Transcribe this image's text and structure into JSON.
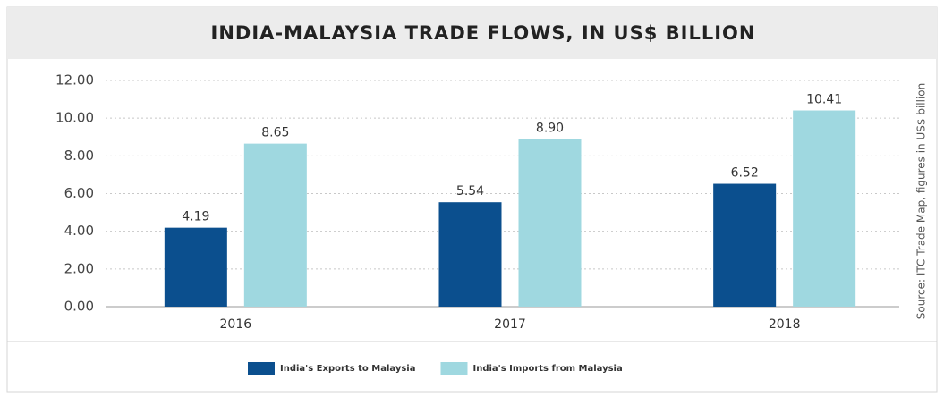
{
  "chart_data": {
    "type": "bar",
    "title": "INDIA-MALAYSIA TRADE FLOWS, IN US$ BILLION",
    "source": "Source: ITC Trade Map, figures in US$ billion",
    "categories": [
      "2016",
      "2017",
      "2018"
    ],
    "series": [
      {
        "name": "India's Exports to Malaysia",
        "color": "#0b4f8e",
        "values": [
          4.19,
          5.54,
          6.52
        ],
        "value_labels": [
          "4.19",
          "5.54",
          "6.52"
        ]
      },
      {
        "name": "India's Imports from Malaysia",
        "color": "#9fd8e0",
        "values": [
          8.65,
          8.9,
          10.41
        ],
        "value_labels": [
          "8.65",
          "8.90",
          "10.41"
        ]
      }
    ],
    "ylim": [
      0,
      12
    ],
    "yticks": [
      {
        "value": 0,
        "label": "0.00"
      },
      {
        "value": 2,
        "label": "2.00"
      },
      {
        "value": 4,
        "label": "4.00"
      },
      {
        "value": 6,
        "label": "6.00"
      },
      {
        "value": 8,
        "label": "8.00"
      },
      {
        "value": 10,
        "label": "10.00"
      },
      {
        "value": 12,
        "label": "12.00"
      }
    ],
    "grid": true,
    "legend": "bottom"
  }
}
